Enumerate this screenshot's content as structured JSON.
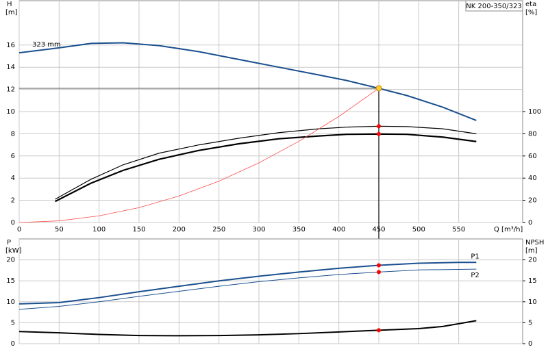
{
  "chart_data": [
    {
      "type": "line",
      "title": "NK 200-350/323",
      "xlabel": "Q [m³/h]",
      "ylabel": "H",
      "yunit": "[m]",
      "y2label": "eta",
      "y2unit": "[%]",
      "xlim": [
        0,
        630
      ],
      "xticks": [
        0,
        50,
        100,
        150,
        200,
        250,
        300,
        350,
        400,
        450,
        500,
        550
      ],
      "xtick_labels": true,
      "ylim": [
        0,
        20
      ],
      "yticks": [
        0,
        2,
        4,
        6,
        8,
        10,
        12,
        14,
        16
      ],
      "y2lim": [
        0,
        200
      ],
      "y2ticks": [
        0,
        20,
        40,
        60,
        80,
        100
      ],
      "grid": true,
      "series": [
        {
          "name": "323 mm",
          "color": "#1a4f8f",
          "width": 2,
          "axis": "y",
          "x": [
            0,
            50,
            90,
            130,
            175,
            225,
            275,
            325,
            375,
            410,
            450,
            485,
            530,
            572
          ],
          "values": [
            15.3,
            15.75,
            16.15,
            16.2,
            15.95,
            15.4,
            14.7,
            14.0,
            13.3,
            12.8,
            12.1,
            11.45,
            10.4,
            9.2
          ]
        },
        {
          "color": "#000000",
          "width": 1.2,
          "axis": "y2",
          "x": [
            45,
            90,
            130,
            175,
            225,
            275,
            325,
            375,
            410,
            450,
            485,
            530,
            572
          ],
          "values": [
            21,
            39,
            52,
            62.5,
            70,
            76,
            81,
            84.5,
            86,
            86.8,
            86.5,
            84.5,
            80
          ]
        },
        {
          "color": "#000000",
          "width": 2.2,
          "axis": "y2",
          "x": [
            45,
            90,
            130,
            175,
            225,
            275,
            325,
            375,
            410,
            450,
            485,
            530,
            572
          ],
          "values": [
            19,
            35.5,
            47,
            57,
            65,
            71,
            75.5,
            78,
            79.5,
            79.8,
            79.5,
            77,
            73
          ]
        },
        {
          "color": "#ff4a4a",
          "width": 0.8,
          "axis": "y",
          "x": [
            0,
            50,
            100,
            150,
            200,
            250,
            300,
            350,
            400,
            450
          ],
          "values": [
            0,
            0.15,
            0.6,
            1.34,
            2.39,
            3.73,
            5.38,
            7.32,
            9.56,
            12.1
          ]
        }
      ],
      "markers": [
        {
          "x": 450,
          "y": 12.1,
          "axis": "y",
          "color": "#ffcc33",
          "duty": true
        },
        {
          "x": 450,
          "y": 86.8,
          "axis": "y2",
          "color": "#ff0000"
        },
        {
          "x": 450,
          "y": 79.8,
          "axis": "y2",
          "color": "#ff0000"
        }
      ]
    },
    {
      "type": "line",
      "ylabel": "P",
      "yunit": "[kW]",
      "y2label": "NPSH",
      "y2unit": "[m]",
      "xlim": [
        0,
        630
      ],
      "xticks": [
        0,
        50,
        100,
        150,
        200,
        250,
        300,
        350,
        400,
        450,
        500,
        550
      ],
      "xtick_labels": false,
      "ylim": [
        0,
        25
      ],
      "yticks": [
        0,
        5,
        10,
        15,
        20
      ],
      "y2lim": [
        0,
        25
      ],
      "y2ticks": [
        0,
        5,
        10,
        15,
        20
      ],
      "grid": true,
      "series": [
        {
          "name": "P1",
          "color": "#1a4f8f",
          "width": 2,
          "axis": "y",
          "x": [
            0,
            50,
            100,
            150,
            200,
            250,
            300,
            350,
            400,
            450,
            500,
            550,
            572
          ],
          "values": [
            9.5,
            9.8,
            11,
            12.4,
            13.7,
            15,
            16.1,
            17.1,
            18,
            18.7,
            19.2,
            19.4,
            19.4
          ]
        },
        {
          "name": "P2",
          "color": "#1a4f8f",
          "width": 1,
          "axis": "y",
          "x": [
            0,
            50,
            100,
            150,
            200,
            250,
            300,
            350,
            400,
            450,
            500,
            572
          ],
          "values": [
            8.2,
            8.9,
            10,
            11.3,
            12.5,
            13.7,
            14.8,
            15.7,
            16.5,
            17.1,
            17.6,
            17.8
          ]
        },
        {
          "color": "#000000",
          "width": 2,
          "axis": "y2",
          "x": [
            0,
            50,
            100,
            150,
            200,
            250,
            300,
            350,
            400,
            450,
            500,
            530,
            572
          ],
          "values": [
            2.9,
            2.6,
            2.2,
            1.95,
            1.9,
            1.95,
            2.1,
            2.4,
            2.8,
            3.2,
            3.6,
            4.1,
            5.5
          ]
        }
      ],
      "markers": [
        {
          "x": 450,
          "y": 18.7,
          "axis": "y",
          "color": "#ff0000"
        },
        {
          "x": 450,
          "y": 17.1,
          "axis": "y",
          "color": "#ff0000"
        },
        {
          "x": 450,
          "y": 3.2,
          "axis": "y2",
          "color": "#ff0000"
        }
      ]
    }
  ]
}
